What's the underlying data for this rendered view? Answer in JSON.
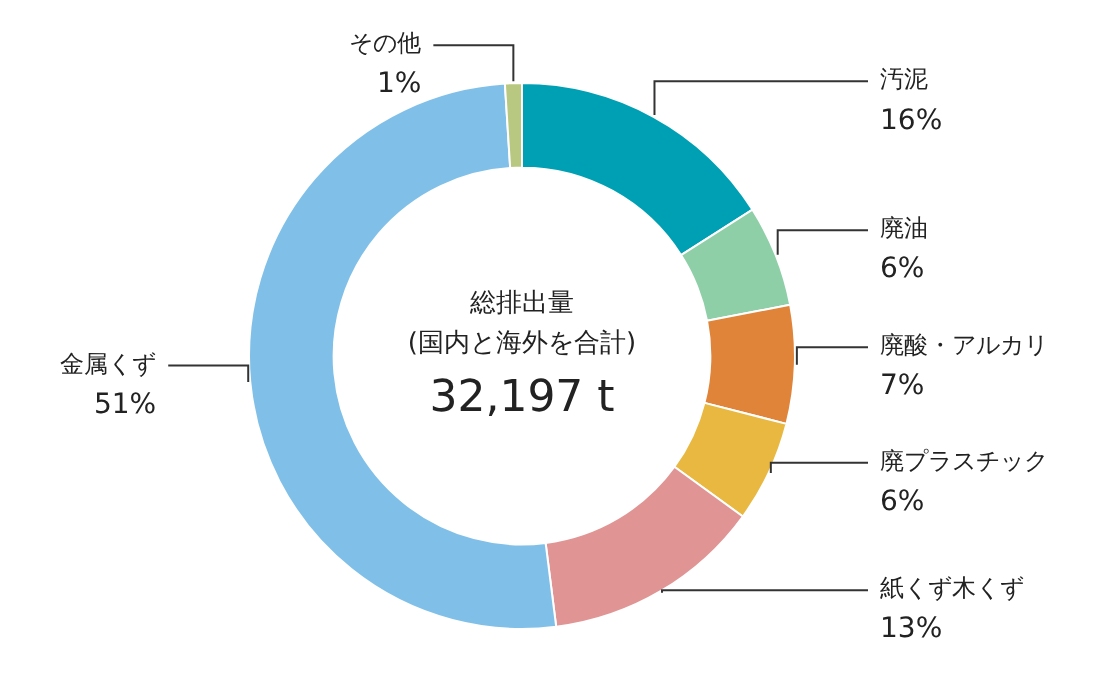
{
  "chart_data": {
    "type": "donut",
    "categories": [
      "汚泥",
      "廃油",
      "廃酸・アルカリ",
      "廃プラスチック",
      "紙くず木くず",
      "金属くず",
      "その他"
    ],
    "values": [
      16,
      6,
      7,
      6,
      13,
      51,
      1
    ],
    "value_labels": [
      "16%",
      "6%",
      "7%",
      "6%",
      "13%",
      "51%",
      "1%"
    ],
    "colors": [
      "#00a0b4",
      "#8ecfa8",
      "#e0843a",
      "#e8b840",
      "#e09494",
      "#80c0e8",
      "#b8c880"
    ],
    "annotations": [
      "総排出量",
      "(国内と海外を合計)",
      "32,197 t"
    ],
    "legend": false
  }
}
